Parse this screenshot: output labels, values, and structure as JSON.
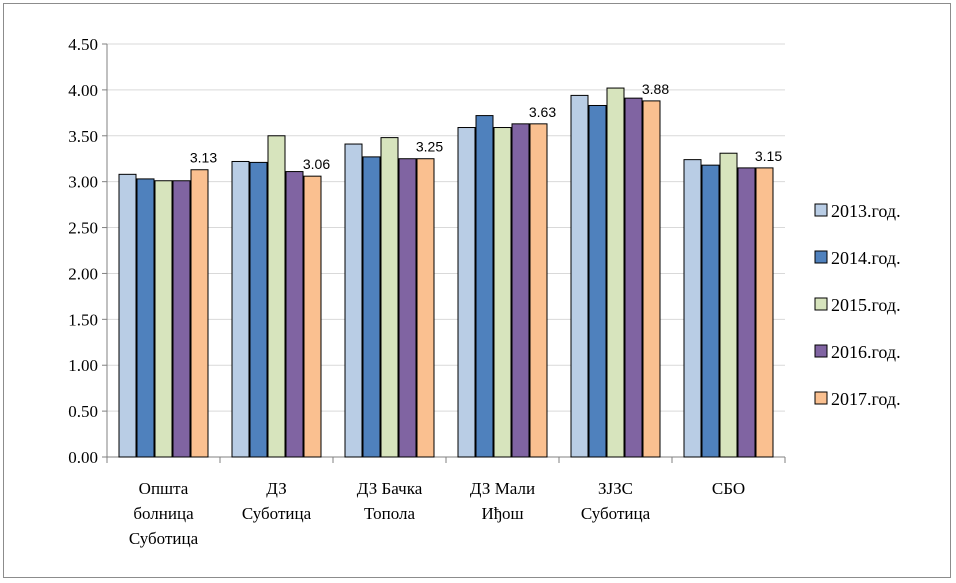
{
  "chart_data": {
    "type": "bar",
    "categories": [
      [
        "Општа",
        "болница",
        "Суботица"
      ],
      [
        "ДЗ",
        "Суботица"
      ],
      [
        "ДЗ Бачка",
        "Топола"
      ],
      [
        "ДЗ Мали",
        "Иђош"
      ],
      [
        "ЗЈЗС",
        "Суботица"
      ],
      [
        "СБО"
      ]
    ],
    "series": [
      {
        "name": "2013.год.",
        "color": "#b9cde5",
        "values": [
          3.08,
          3.22,
          3.41,
          3.59,
          3.94,
          3.24
        ]
      },
      {
        "name": "2014.год.",
        "color": "#4f81bd",
        "values": [
          3.03,
          3.21,
          3.27,
          3.72,
          3.83,
          3.18
        ]
      },
      {
        "name": "2015.год.",
        "color": "#d7e4bd",
        "values": [
          3.01,
          3.5,
          3.48,
          3.59,
          4.02,
          3.31
        ]
      },
      {
        "name": "2016.год.",
        "color": "#8064a2",
        "values": [
          3.01,
          3.11,
          3.25,
          3.63,
          3.91,
          3.15
        ]
      },
      {
        "name": "2017.год.",
        "color": "#fac090",
        "values": [
          3.13,
          3.06,
          3.25,
          3.63,
          3.88,
          3.15
        ]
      }
    ],
    "data_labels": [
      "3.13",
      "3.06",
      "3.25",
      "3.63",
      "3.88",
      "3.15"
    ],
    "y_ticks": [
      "0.00",
      "0.50",
      "1.00",
      "1.50",
      "2.00",
      "2.50",
      "3.00",
      "3.50",
      "4.00",
      "4.50"
    ],
    "ylim": [
      0,
      4.5
    ],
    "title": "",
    "xlabel": "",
    "ylabel": "",
    "grid": true,
    "legend_position": "right"
  }
}
